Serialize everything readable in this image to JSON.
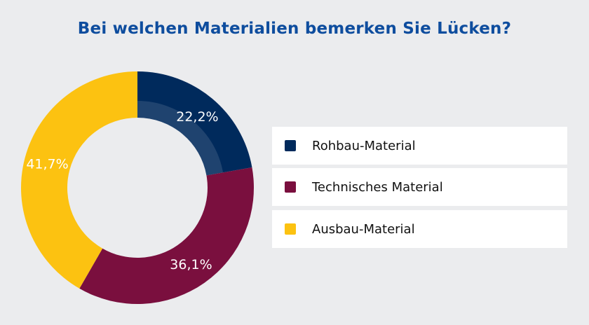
{
  "chart_data": {
    "type": "pie",
    "subtype": "donut",
    "title": "Bei welchen Materialien bemerken Sie Lücken?",
    "categories": [
      "Rohbau-Material",
      "Technisches Material",
      "Ausbau-Material"
    ],
    "values": [
      22.2,
      36.1,
      41.7
    ],
    "value_labels": [
      "22,2%",
      "36,1%",
      "41,7%"
    ],
    "colors": [
      "#002a5c",
      "#7a0f3e",
      "#fcc211"
    ],
    "legend_placement": "right"
  }
}
